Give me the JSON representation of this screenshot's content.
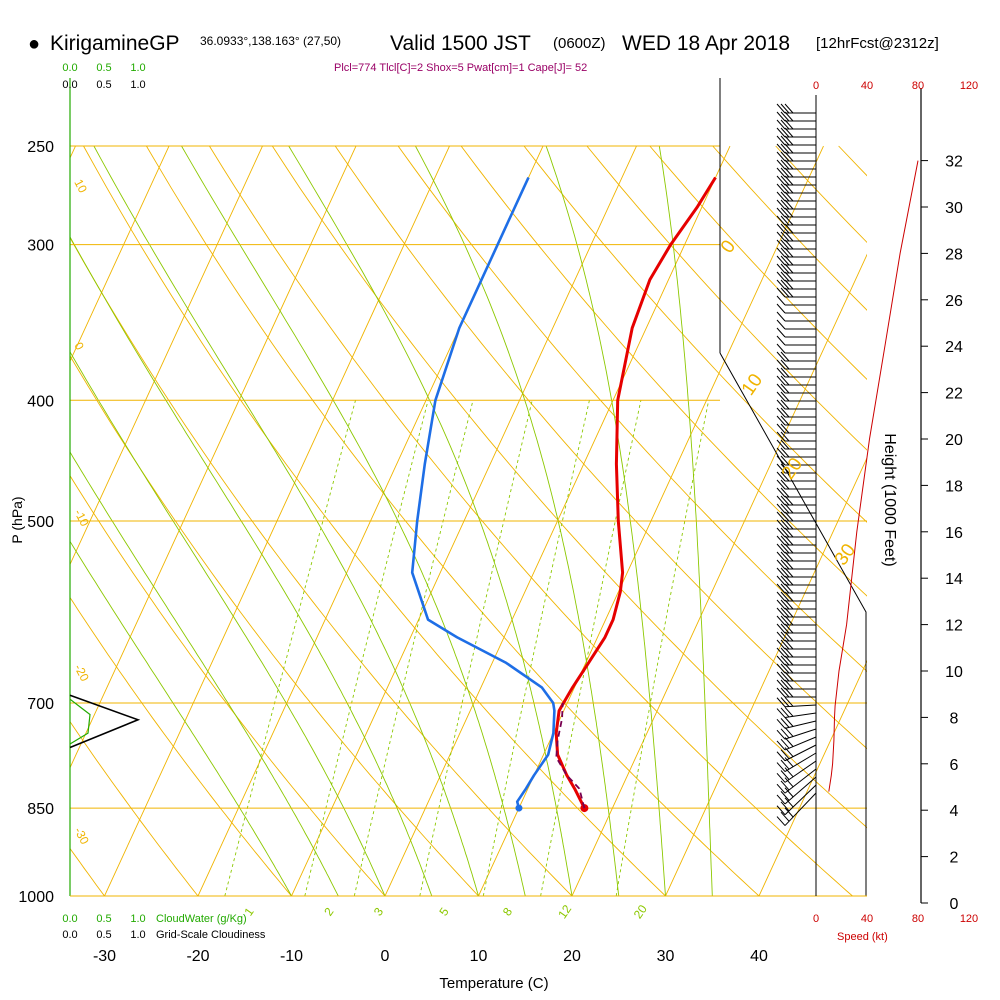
{
  "header": {
    "bullet": "●",
    "site": "KirigamineGP",
    "coords": "36.0933°,138.163° (27,50)",
    "valid": "Valid 1500 JST",
    "zulu": "(0600Z)",
    "date": "WED 18 Apr 2018",
    "fcst": "[12hrFcst@2312z]",
    "indices": "Plcl=774 Tlcl[C]=2 Shox=5 Pwat[cm]=1 Cape[J]= 52"
  },
  "labels": {
    "pressure_axis": "P (hPa)",
    "temp_axis": "Temperature (C)",
    "height_axis": "Height (1000 Feet)",
    "speed_axis": "Speed (kt)",
    "cloudwater": "CloudWater (g/Kg)",
    "cloudiness": "Grid-Scale Cloudiness"
  },
  "colors": {
    "isotherm": "#f0b400",
    "dry_adiabat": "#f0b400",
    "moist_adiabat": "#8cc800",
    "mixing_ratio": "#8cc800",
    "temperature": "#e60000",
    "dewpoint": "#1e6ee6",
    "parcel": "#780050",
    "speed": "#cc0000",
    "cloudwater": "#22aa00",
    "index_text": "#990066"
  },
  "chart_data": {
    "type": "line",
    "title": "KirigamineGP Valid 1500 JST (0600Z) WED 18 Apr 2018 [12hrFcst@2312z]",
    "xlabel": "Temperature (C)",
    "ylabel": "P (hPa)",
    "xlim": [
      -35,
      45
    ],
    "ylim": [
      1000,
      250
    ],
    "y_scale": "log",
    "x_ticks": [
      "-30",
      "-20",
      "-10",
      "0",
      "10",
      "20",
      "30",
      "40"
    ],
    "p_ticks": [
      "250",
      "300",
      "400",
      "500",
      "700",
      "850",
      "1000"
    ],
    "height_ticks": [
      "0",
      "2",
      "4",
      "6",
      "8",
      "10",
      "12",
      "14",
      "16",
      "18",
      "20",
      "22",
      "24",
      "26",
      "28",
      "30",
      "32"
    ],
    "speed_ticks": [
      "0",
      "40",
      "80",
      "120"
    ],
    "cloud_ticks": [
      "0.0",
      "0.5",
      "1.0"
    ],
    "isotherm_labels": [
      "10",
      "0",
      "-10",
      "-20",
      "-30"
    ],
    "isotherm_values": [
      0,
      10,
      20,
      30
    ],
    "mixing_ratio_labels": [
      "1",
      "2",
      "3",
      "5",
      "8",
      "12",
      "20"
    ],
    "series": [
      {
        "name": "Temperature",
        "p": [
          850,
          820,
          800,
          770,
          740,
          710,
          700,
          680,
          650,
          620,
          600,
          570,
          550,
          500,
          450,
          400,
          350,
          320,
          300,
          280,
          265
        ],
        "t": [
          17,
          15,
          13.5,
          11.5,
          10.3,
          9.5,
          9.6,
          9.8,
          10.3,
          10.8,
          10.8,
          10.2,
          9.5,
          6.5,
          3.5,
          0.5,
          -1.5,
          -2,
          -1.5,
          -0.5,
          0
        ]
      },
      {
        "name": "Dewpoint",
        "p": [
          850,
          840,
          820,
          800,
          770,
          740,
          710,
          700,
          680,
          650,
          620,
          600,
          550,
          500,
          450,
          400,
          350,
          300,
          270,
          265
        ],
        "t": [
          10,
          9.5,
          9.8,
          10,
          10.5,
          10,
          9,
          8.5,
          6.5,
          1.5,
          -5,
          -9,
          -13,
          -15,
          -17,
          -19,
          -20,
          -20,
          -20,
          -20
        ]
      },
      {
        "name": "Parcel",
        "p": [
          850,
          820,
          800,
          774,
          750,
          720,
          700
        ],
        "t": [
          17,
          15.5,
          13.5,
          11.5,
          10.8,
          10.2,
          9.5
        ]
      }
    ],
    "wind_speed": {
      "height_kft": [
        4.8,
        5.5,
        6,
        7,
        8,
        8.5,
        10,
        12,
        14,
        16,
        20,
        24,
        28,
        32
      ],
      "kt": [
        10,
        12,
        13,
        14,
        14.5,
        15,
        18,
        24,
        28,
        32,
        42,
        54,
        66,
        80
      ]
    },
    "cloudiness": {
      "p": [
        690,
        722,
        760
      ],
      "frac": [
        0,
        1,
        0
      ]
    }
  }
}
